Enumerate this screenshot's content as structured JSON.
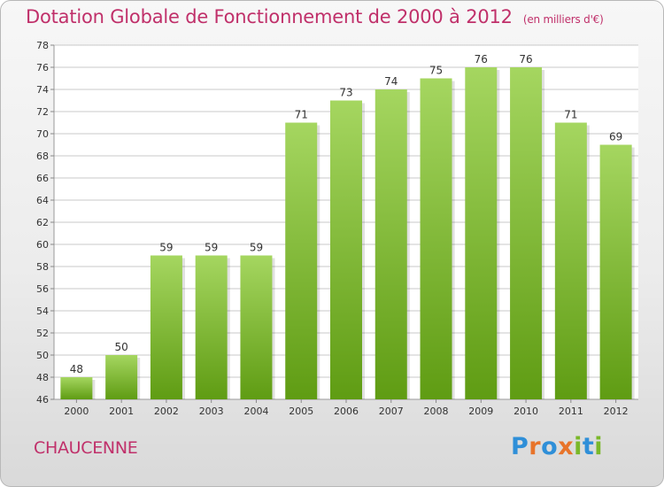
{
  "title": "Dotation Globale de Fonctionnement de 2000 à 2012",
  "subtitle": "(en milliers d'€)",
  "commune": "CHAUCENNE",
  "logo_text": "Proxiti",
  "colors": {
    "title": "#c0306a",
    "bar_top": "#a5d660",
    "bar_bottom": "#5f9c13",
    "grid": "#c8c8c8",
    "axis_text": "#333333"
  },
  "chart_data": {
    "type": "bar",
    "title": "Dotation Globale de Fonctionnement de 2000 à 2012",
    "subtitle": "(en milliers d'€)",
    "categories": [
      "2000",
      "2001",
      "2002",
      "2003",
      "2004",
      "2005",
      "2006",
      "2007",
      "2008",
      "2009",
      "2010",
      "2011",
      "2012"
    ],
    "values": [
      48,
      50,
      59,
      59,
      59,
      71,
      73,
      74,
      75,
      76,
      76,
      71,
      69
    ],
    "ylim": [
      46,
      78
    ],
    "ytick_step": 2,
    "xlabel": "",
    "ylabel": "",
    "grid": true,
    "data_labels": true
  }
}
